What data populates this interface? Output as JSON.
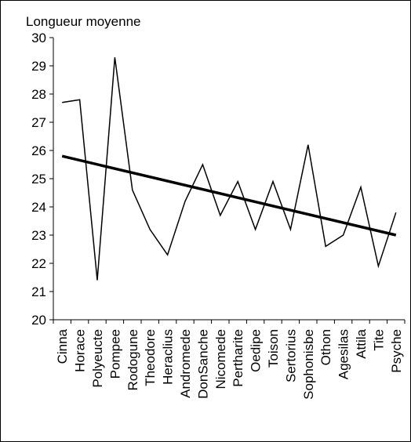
{
  "chart_data": {
    "type": "line",
    "title": "",
    "ylabel": "Longueur moyenne",
    "xlabel": "",
    "ylim": [
      20,
      30
    ],
    "yticks": [
      20,
      21,
      22,
      23,
      24,
      25,
      26,
      27,
      28,
      29,
      30
    ],
    "grid": false,
    "legend": "none",
    "categories": [
      "Cinna",
      "Horace",
      "Polyeucte",
      "Pompee",
      "Rodogune",
      "Theodore",
      "Heraclius",
      "Andromede",
      "DonSanche",
      "Nicomede",
      "Pertharite",
      "Oedipe",
      "Toison",
      "Sertorius",
      "Sophonisbe",
      "Othon",
      "Agesilas",
      "Attila",
      "Tite",
      "Psyche"
    ],
    "series": [
      {
        "values": [
          27.7,
          27.8,
          21.4,
          29.3,
          24.6,
          23.2,
          22.3,
          24.2,
          25.5,
          23.7,
          24.9,
          23.2,
          24.9,
          23.2,
          26.2,
          22.6,
          23.0,
          24.7,
          21.9,
          23.8
        ],
        "color": "#000000"
      }
    ],
    "trendline": {
      "start": 25.8,
      "end": 23.0,
      "color": "#000000"
    }
  }
}
